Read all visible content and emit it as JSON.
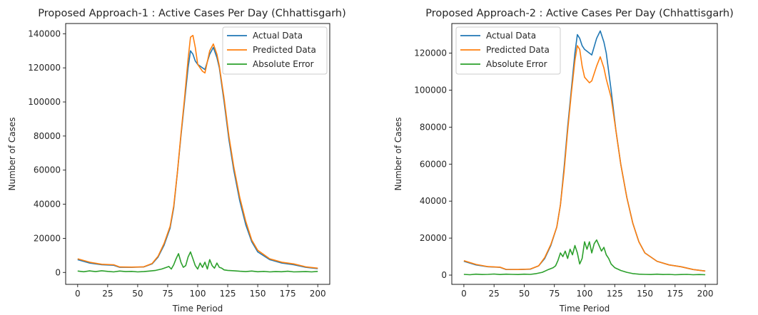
{
  "colors": {
    "actual": "#1f77b4",
    "predicted": "#ff7f0e",
    "error": "#2ca02c"
  },
  "chart_data": [
    {
      "type": "line",
      "title": "Proposed Approach-1 : Active Cases Per Day (Chhattisgarh)",
      "xlabel": "Time Period",
      "ylabel": "Number of Cases",
      "xlim": [
        -10,
        210
      ],
      "ylim": [
        -7000,
        146000
      ],
      "xticks": [
        0,
        25,
        50,
        75,
        100,
        125,
        150,
        175,
        200
      ],
      "xtick_labels": [
        "0",
        "25",
        "50",
        "75",
        "100",
        "125",
        "150",
        "175",
        "200"
      ],
      "yticks": [
        0,
        20000,
        40000,
        60000,
        80000,
        100000,
        120000,
        140000
      ],
      "ytick_labels": [
        "0",
        "20000",
        "40000",
        "60000",
        "80000",
        "100000",
        "120000",
        "140000"
      ],
      "legend": "top-right",
      "series": [
        {
          "name": "Actual Data",
          "color": "#1f77b4",
          "x": [
            0,
            10,
            20,
            30,
            35,
            45,
            55,
            62,
            67,
            72,
            77,
            80,
            83,
            86,
            89,
            92,
            94,
            96,
            98,
            100,
            104,
            106,
            110,
            113,
            116,
            118,
            122,
            126,
            130,
            135,
            140,
            145,
            150,
            160,
            170,
            180,
            190,
            200
          ],
          "y": [
            7500,
            5500,
            4500,
            4200,
            3000,
            3000,
            3200,
            5000,
            9000,
            16000,
            26000,
            38000,
            58000,
            80000,
            100000,
            120000,
            130000,
            128000,
            124000,
            122000,
            120000,
            119000,
            128000,
            132000,
            126000,
            120000,
            100000,
            78000,
            60000,
            42000,
            28000,
            18000,
            12000,
            7500,
            5500,
            4500,
            3000,
            2200
          ]
        },
        {
          "name": "Predicted Data",
          "color": "#ff7f0e",
          "x": [
            0,
            10,
            20,
            30,
            35,
            45,
            55,
            62,
            67,
            72,
            77,
            80,
            83,
            86,
            89,
            92,
            94,
            96,
            98,
            100,
            104,
            106,
            110,
            113,
            116,
            118,
            122,
            126,
            130,
            135,
            140,
            145,
            150,
            160,
            170,
            180,
            190,
            200
          ],
          "y": [
            8000,
            6000,
            4800,
            4500,
            3200,
            3100,
            3300,
            5200,
            9500,
            17000,
            27000,
            39000,
            58000,
            81000,
            102000,
            125000,
            138000,
            139000,
            132000,
            122000,
            118000,
            117000,
            130000,
            134000,
            128000,
            121000,
            102000,
            80000,
            62000,
            44000,
            30000,
            19000,
            13000,
            8000,
            6000,
            5000,
            3300,
            2500
          ]
        },
        {
          "name": "Absolute Error",
          "color": "#2ca02c",
          "x": [
            0,
            5,
            10,
            15,
            20,
            25,
            30,
            35,
            40,
            45,
            50,
            55,
            60,
            65,
            70,
            74,
            76,
            78,
            80,
            82,
            84,
            86,
            88,
            90,
            92,
            94,
            96,
            98,
            100,
            102,
            104,
            106,
            108,
            110,
            112,
            114,
            116,
            118,
            120,
            122,
            125,
            130,
            135,
            140,
            145,
            150,
            155,
            160,
            165,
            170,
            175,
            180,
            185,
            190,
            195,
            200
          ],
          "y": [
            800,
            400,
            900,
            500,
            1000,
            600,
            300,
            800,
            500,
            600,
            300,
            500,
            800,
            1200,
            2000,
            3000,
            3500,
            2000,
            4500,
            8000,
            11000,
            6000,
            3000,
            4000,
            9000,
            12000,
            8000,
            4000,
            2000,
            5500,
            3000,
            6000,
            2000,
            7500,
            4000,
            2500,
            5500,
            3000,
            2500,
            1500,
            1200,
            1000,
            700,
            500,
            800,
            400,
            600,
            300,
            500,
            400,
            700,
            300,
            400,
            500,
            300,
            600
          ]
        }
      ]
    },
    {
      "type": "line",
      "title": "Proposed Approach-2 : Active Cases Per Day (Chhattisgarh)",
      "xlabel": "Time Period",
      "ylabel": "Number of Cases",
      "xlim": [
        -10,
        210
      ],
      "ylim": [
        -5000,
        136000
      ],
      "xticks": [
        0,
        25,
        50,
        75,
        100,
        125,
        150,
        175,
        200
      ],
      "xtick_labels": [
        "0",
        "25",
        "50",
        "75",
        "100",
        "125",
        "150",
        "175",
        "200"
      ],
      "yticks": [
        0,
        20000,
        40000,
        60000,
        80000,
        100000,
        120000
      ],
      "ytick_labels": [
        "0",
        "20000",
        "40000",
        "60000",
        "80000",
        "100000",
        "120000"
      ],
      "legend": "top-left",
      "series": [
        {
          "name": "Actual Data",
          "color": "#1f77b4",
          "x": [
            0,
            10,
            20,
            30,
            35,
            45,
            55,
            62,
            67,
            72,
            77,
            80,
            83,
            86,
            89,
            92,
            94,
            96,
            98,
            100,
            104,
            106,
            110,
            113,
            116,
            118,
            122,
            126,
            130,
            135,
            140,
            145,
            150,
            160,
            170,
            180,
            190,
            200
          ],
          "y": [
            7500,
            5500,
            4500,
            4200,
            3000,
            3000,
            3200,
            5000,
            9000,
            16000,
            26000,
            38000,
            58000,
            80000,
            100000,
            120000,
            130000,
            128000,
            124000,
            122000,
            120000,
            119000,
            128000,
            132000,
            126000,
            120000,
            100000,
            78000,
            60000,
            42000,
            28000,
            18000,
            12000,
            7500,
            5500,
            4500,
            3000,
            2200
          ]
        },
        {
          "name": "Predicted Data",
          "color": "#ff7f0e",
          "x": [
            0,
            10,
            20,
            30,
            35,
            45,
            55,
            62,
            67,
            72,
            77,
            80,
            83,
            86,
            89,
            92,
            94,
            96,
            98,
            100,
            104,
            106,
            110,
            113,
            116,
            118,
            122,
            126,
            130,
            135,
            140,
            145,
            150,
            160,
            170,
            180,
            190,
            200
          ],
          "y": [
            7800,
            5800,
            4600,
            4300,
            3100,
            3000,
            3300,
            5000,
            9500,
            16500,
            26000,
            38000,
            56000,
            78000,
            98000,
            116000,
            124000,
            122000,
            113000,
            107000,
            104000,
            105000,
            113000,
            118000,
            112000,
            106000,
            96000,
            78000,
            60000,
            42000,
            28000,
            18000,
            12000,
            7500,
            5500,
            4500,
            3000,
            2200
          ]
        },
        {
          "name": "Absolute Error",
          "color": "#2ca02c",
          "x": [
            0,
            5,
            10,
            15,
            20,
            25,
            30,
            35,
            40,
            45,
            50,
            55,
            60,
            65,
            70,
            74,
            76,
            78,
            80,
            82,
            84,
            86,
            88,
            90,
            92,
            94,
            96,
            98,
            100,
            102,
            104,
            106,
            108,
            110,
            112,
            114,
            116,
            118,
            120,
            122,
            125,
            130,
            135,
            140,
            145,
            150,
            155,
            160,
            165,
            170,
            175,
            180,
            185,
            190,
            195,
            200
          ],
          "y": [
            400,
            200,
            500,
            300,
            400,
            600,
            300,
            500,
            400,
            300,
            500,
            400,
            800,
            1500,
            3000,
            4000,
            5000,
            8000,
            12000,
            10000,
            13000,
            9000,
            14000,
            11000,
            16000,
            12000,
            6000,
            9000,
            18000,
            14000,
            18000,
            12000,
            17000,
            19000,
            16000,
            13000,
            15000,
            11000,
            9000,
            6000,
            4000,
            2500,
            1500,
            800,
            500,
            400,
            300,
            500,
            300,
            400,
            200,
            300,
            400,
            200,
            300,
            200
          ]
        }
      ]
    }
  ]
}
